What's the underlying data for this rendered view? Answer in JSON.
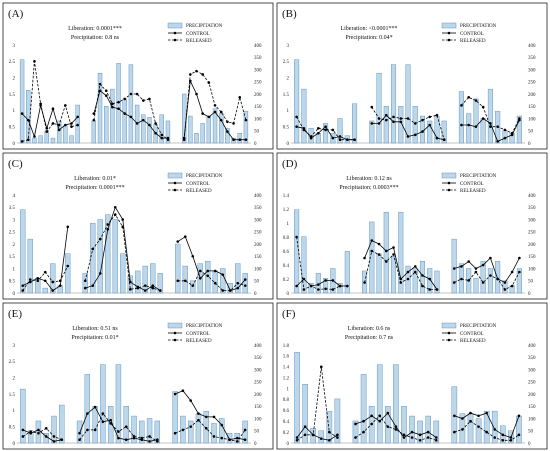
{
  "chart_data": [
    {
      "type": "bar+line",
      "panel_label": "(A)",
      "stats": [
        "Liberation: 0.0001***",
        "Precipitation: 0.8 ns"
      ],
      "legend": [
        "PRECIPITATION",
        "CONTROL",
        "RELEASED"
      ],
      "ylim_left": [
        0,
        3
      ],
      "yticks_left": [
        "0",
        "0.5",
        "1",
        "1.5",
        "2",
        "2.5",
        "3"
      ],
      "ylim_right": [
        0,
        400
      ],
      "yticks_right": [
        "0",
        "50",
        "100",
        "150",
        "200",
        "250",
        "300",
        "350",
        "400"
      ],
      "groups": [
        {
          "precipitation": [
            340,
            215,
            20,
            30,
            50,
            20,
            90,
            70,
            30,
            155
          ],
          "control": [
            0.9,
            0.7,
            0.2,
            1.15,
            0.45,
            1.05,
            0.4,
            0.55,
            0.6,
            0.8
          ],
          "released": [
            0.05,
            0.1,
            2.5,
            1.2,
            0.35,
            0.6,
            0.55,
            1.15,
            0.5,
            0.55
          ]
        },
        {
          "precipitation": [
            90,
            285,
            150,
            220,
            325,
            180,
            320,
            155,
            115,
            105,
            75,
            115,
            90
          ],
          "control": [
            0.9,
            1.6,
            1.45,
            1.1,
            1.05,
            0.9,
            0.8,
            0.6,
            0.7,
            0.55,
            0.3,
            0.15,
            0.15
          ],
          "released": [
            0.7,
            1.8,
            1.6,
            1.2,
            1.25,
            1.35,
            1.5,
            1.5,
            1.3,
            1.35,
            0.6,
            0.25,
            0.1
          ]
        },
        {
          "precipitation": [
            200,
            110,
            40,
            80,
            110,
            140,
            120,
            60,
            20,
            40,
            130
          ],
          "control": [
            0.15,
            1.9,
            1.5,
            0.9,
            0.8,
            0.95,
            0.7,
            0.35,
            0.1,
            0.1,
            0.1
          ],
          "released": [
            0.1,
            2.1,
            2.2,
            2.1,
            1.85,
            1.15,
            0.95,
            0.65,
            0.6,
            1.4,
            0.7
          ]
        }
      ]
    },
    {
      "type": "bar+line",
      "panel_label": "(B)",
      "stats": [
        "Liberation: <0.0001***",
        "Precipitation: 0.04*"
      ],
      "legend": [
        "PRECIPITATION",
        "CONTROL",
        "RELEASED"
      ],
      "ylim_left": [
        0,
        3
      ],
      "yticks_left": [
        "0",
        "0.5",
        "1",
        "1.5",
        "2",
        "2.5",
        "3"
      ],
      "ylim_right": [
        0,
        400
      ],
      "yticks_right": [
        "0",
        "50",
        "100",
        "150",
        "200",
        "250",
        "300",
        "350",
        "400"
      ],
      "groups": [
        {
          "precipitation": [
            340,
            220,
            60,
            40,
            80,
            40,
            100,
            30,
            160
          ],
          "control": [
            0.5,
            0.45,
            0.15,
            0.3,
            0.5,
            0.15,
            0.2,
            0.1,
            0.1
          ],
          "released": [
            0.8,
            0.4,
            0.2,
            0.45,
            0.4,
            0.4,
            0.1,
            0.1,
            0.1
          ]
        },
        {
          "precipitation": [
            90,
            285,
            150,
            320,
            150,
            320,
            150,
            110,
            90,
            110,
            90
          ],
          "control": [
            0.6,
            0.6,
            0.85,
            0.65,
            0.65,
            0.2,
            0.25,
            0.35,
            0.55,
            0.15,
            0.1
          ],
          "released": [
            1.1,
            0.75,
            0.7,
            0.8,
            0.75,
            0.75,
            0.6,
            0.7,
            0.8,
            0.85,
            0.1
          ]
        },
        {
          "precipitation": [
            210,
            120,
            180,
            100,
            220,
            130,
            50,
            40,
            110
          ],
          "control": [
            0.55,
            0.55,
            0.5,
            0.75,
            0.6,
            0.05,
            0.15,
            0.25,
            0.7
          ],
          "released": [
            1.15,
            1.4,
            1.3,
            1.1,
            0.5,
            0.5,
            0.4,
            0.3,
            0.75
          ]
        }
      ]
    },
    {
      "type": "bar+line",
      "panel_label": "(C)",
      "stats": [
        "Liberation: 0.01*",
        "Precipitation: 0.0001***"
      ],
      "legend": [
        "PRECIPITATION",
        "CONTROL",
        "RELEASED"
      ],
      "ylim_left": [
        0,
        4
      ],
      "yticks_left": [
        "0",
        "0.5",
        "1",
        "1.5",
        "2",
        "2.5",
        "3",
        "3.5",
        "4"
      ],
      "ylim_right": [
        0,
        400
      ],
      "yticks_right": [
        "0",
        "50",
        "100",
        "150",
        "200",
        "250",
        "300",
        "350",
        "400"
      ],
      "groups": [
        {
          "precipitation": [
            340,
            220,
            60,
            20,
            120,
            30,
            160
          ],
          "control": [
            0.3,
            0.45,
            0.6,
            0.5,
            0.1,
            0.3,
            2.7
          ],
          "released": [
            0.1,
            0.55,
            0.5,
            0.85,
            0.45,
            0.5,
            1.1
          ]
        },
        {
          "precipitation": [
            80,
            285,
            300,
            320,
            300,
            160,
            70,
            90,
            110,
            120,
            80
          ],
          "control": [
            0.2,
            0.3,
            0.8,
            2.6,
            3.5,
            3.0,
            0.45,
            0.25,
            0.1,
            0.3,
            0.1
          ],
          "released": [
            0.5,
            1.8,
            2.2,
            2.8,
            3.2,
            2.7,
            0.15,
            0.2,
            0.3,
            0.2,
            0.1
          ]
        },
        {
          "precipitation": [
            200,
            110,
            50,
            120,
            130,
            90,
            100,
            40,
            120,
            80
          ],
          "control": [
            2.1,
            2.3,
            1.5,
            0.6,
            0.9,
            0.9,
            0.75,
            0.1,
            0.2,
            0.55
          ],
          "released": [
            0.5,
            0.5,
            0.3,
            0.9,
            0.7,
            0.4,
            0.1,
            0.1,
            0.4,
            0.3
          ]
        }
      ]
    },
    {
      "type": "bar+line",
      "panel_label": "(D)",
      "stats": [
        "Liberation: 0.12 ns",
        "Precipitation: 0.0003***"
      ],
      "legend": [
        "PRECIPITATION",
        "CONTROL",
        "RELEASED"
      ],
      "ylim_left": [
        0,
        1.4
      ],
      "yticks_left": [
        "0",
        "0.2",
        "0.4",
        "0.6",
        "0.8",
        "1",
        "1.2",
        "1.4"
      ],
      "ylim_right": [
        0,
        400
      ],
      "yticks_right": [
        "0",
        "50",
        "100",
        "150",
        "200",
        "250",
        "300",
        "350",
        "400"
      ],
      "groups": [
        {
          "precipitation": [
            340,
            230,
            40,
            80,
            60,
            100,
            40,
            170
          ],
          "control": [
            0.1,
            0.2,
            0.1,
            0.12,
            0.18,
            0.18,
            0.1,
            0.1
          ],
          "released": [
            0.8,
            0.05,
            0.1,
            0.05,
            0.06,
            0.05,
            0.1,
            0.1
          ]
        },
        {
          "precipitation": [
            90,
            290,
            160,
            330,
            150,
            330,
            110,
            100,
            130,
            100,
            90
          ],
          "control": [
            0.5,
            0.75,
            0.7,
            0.6,
            0.65,
            0.2,
            0.3,
            0.38,
            0.25,
            0.2,
            0.05
          ],
          "released": [
            0.15,
            0.6,
            0.55,
            0.45,
            0.55,
            0.15,
            0.2,
            0.3,
            0.1,
            0.05,
            0.05
          ]
        },
        {
          "precipitation": [
            220,
            120,
            100,
            60,
            130,
            100,
            130,
            50,
            30,
            100
          ],
          "control": [
            0.35,
            0.38,
            0.45,
            0.35,
            0.4,
            0.5,
            0.2,
            0.15,
            0.3,
            0.5
          ],
          "released": [
            0.15,
            0.2,
            0.18,
            0.3,
            0.15,
            0.25,
            0.2,
            0.05,
            0.1,
            0.3
          ]
        }
      ]
    },
    {
      "type": "bar+line",
      "panel_label": "(E)",
      "stats": [
        "Liberation: 0.51 ns",
        "Precipitation: 0.01*"
      ],
      "legend": [
        "PRECIPITATION",
        "CONTROL",
        "RELEASED"
      ],
      "ylim_left": [
        0,
        3
      ],
      "yticks_left": [
        "0",
        "0.5",
        "1",
        "1.5",
        "2",
        "2.5",
        "3"
      ],
      "ylim_right": [
        0,
        400
      ],
      "yticks_right": [
        "0",
        "50",
        "100",
        "150",
        "200",
        "250",
        "300",
        "350",
        "400"
      ],
      "groups": [
        {
          "precipitation": [
            220,
            50,
            90,
            40,
            110,
            155
          ],
          "control": [
            0.4,
            0.3,
            0.4,
            0.2,
            0.05,
            0.1
          ],
          "released": [
            0.2,
            0.35,
            0.3,
            0.45,
            0.2,
            0.1
          ]
        },
        {
          "precipitation": [
            90,
            280,
            150,
            320,
            150,
            320,
            150,
            110,
            90,
            100,
            90
          ],
          "control": [
            0.3,
            0.9,
            1.1,
            0.65,
            0.7,
            0.15,
            0.1,
            0.15,
            0.1,
            0.05,
            0.1
          ],
          "released": [
            0.1,
            0.4,
            0.4,
            0.9,
            0.6,
            0.35,
            0.5,
            0.2,
            0.15,
            0.2,
            0.05
          ]
        },
        {
          "precipitation": [
            210,
            110,
            90,
            120,
            130,
            80,
            100,
            40,
            40,
            90
          ],
          "control": [
            1.5,
            1.6,
            1.3,
            0.9,
            0.8,
            0.8,
            0.55,
            0.1,
            0.15,
            0.1
          ],
          "released": [
            0.3,
            0.4,
            0.5,
            0.7,
            0.45,
            0.2,
            0.15,
            0.1,
            0.05,
            0.4
          ]
        }
      ]
    },
    {
      "type": "bar+line",
      "panel_label": "(F)",
      "stats": [
        "Liberation: 0.6 ns",
        "Precipitation: 0.7 ns"
      ],
      "legend": [
        "PRECIPITATION",
        "CONTROL",
        "RELEASED"
      ],
      "ylim_left": [
        0,
        1.8
      ],
      "yticks_left": [
        "0",
        "0.2",
        "0.4",
        "0.6",
        "0.8",
        "1",
        "1.2",
        "1.4",
        "1.6",
        "1.8"
      ],
      "ylim_right": [
        0,
        400
      ],
      "yticks_right": [
        "0",
        "50",
        "100",
        "150",
        "200",
        "250",
        "300",
        "350",
        "400"
      ],
      "groups": [
        {
          "precipitation": [
            370,
            240,
            60,
            50,
            130,
            180
          ],
          "control": [
            0.1,
            0.3,
            0.15,
            0.08,
            0.05,
            0.15
          ],
          "released": [
            0.05,
            0.15,
            0.15,
            1.4,
            0.2,
            0.1
          ]
        },
        {
          "precipitation": [
            90,
            280,
            150,
            320,
            150,
            320,
            150,
            110,
            90,
            110,
            90
          ],
          "control": [
            0.35,
            0.4,
            0.5,
            0.4,
            0.55,
            0.3,
            0.1,
            0.2,
            0.15,
            0.2,
            0.1
          ],
          "released": [
            0.1,
            0.2,
            0.35,
            0.5,
            0.3,
            0.25,
            0.15,
            0.1,
            0.05,
            0.1,
            0.05
          ]
        },
        {
          "precipitation": [
            230,
            120,
            120,
            100,
            130,
            130,
            70,
            50,
            110
          ],
          "control": [
            0.5,
            0.45,
            0.55,
            0.5,
            0.55,
            0.25,
            0.15,
            0.1,
            0.5
          ],
          "released": [
            0.2,
            0.25,
            0.4,
            0.3,
            0.2,
            0.1,
            0.05,
            0.05,
            0.15
          ]
        }
      ]
    }
  ]
}
